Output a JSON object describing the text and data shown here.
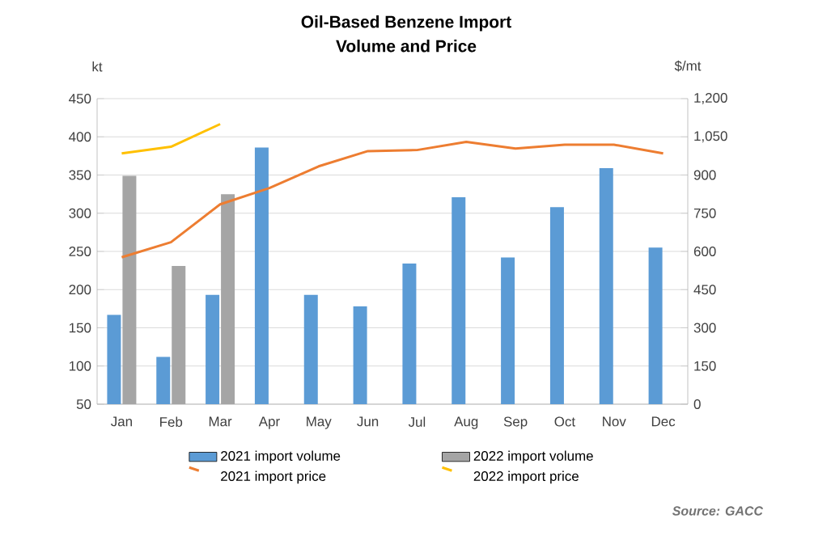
{
  "chart_data": {
    "type": "bar",
    "title": "Oil-Based Benzene Import",
    "subtitle": "Volume and Price",
    "ylabel": "kt",
    "y2label": "$/mt",
    "categories": [
      "Jan",
      "Feb",
      "Mar",
      "Apr",
      "May",
      "Jun",
      "Jul",
      "Aug",
      "Sep",
      "Oct",
      "Nov",
      "Dec"
    ],
    "series": [
      {
        "name": "2021 import volume",
        "color": "#5b9bd5",
        "values": [
          167,
          112,
          193,
          386,
          193,
          178,
          234,
          321,
          242,
          308,
          359,
          255
        ]
      },
      {
        "name": "2022 import volume",
        "color": "#a5a5a5",
        "values": [
          349,
          231,
          325,
          null,
          null,
          null,
          null,
          null,
          null,
          null,
          null,
          null
        ]
      },
      {
        "name": "2021 import price",
        "type": "line",
        "axis": "y2",
        "color": "#ed7d31",
        "values": [
          577,
          636,
          785,
          849,
          934,
          994,
          998,
          1030,
          1004,
          1019,
          1019,
          985
        ]
      },
      {
        "name": "2022 import price",
        "type": "line",
        "axis": "y2",
        "color": "#ffc000",
        "values": [
          985,
          1011,
          1100,
          null,
          null,
          null,
          null,
          null,
          null,
          null,
          null,
          null
        ]
      }
    ],
    "ylim": [
      50,
      450
    ],
    "yticks": [
      50,
      100,
      150,
      200,
      250,
      300,
      350,
      400,
      450
    ],
    "y2lim": [
      0,
      1200
    ],
    "y2ticks": [
      0,
      150,
      300,
      450,
      600,
      750,
      900,
      {
        "value": 1050,
        "label": "1,050"
      },
      {
        "value": 1200,
        "label": "1,200"
      }
    ],
    "grid": "y",
    "legend": "bottom",
    "annotations": [
      "Source: GACC"
    ]
  }
}
